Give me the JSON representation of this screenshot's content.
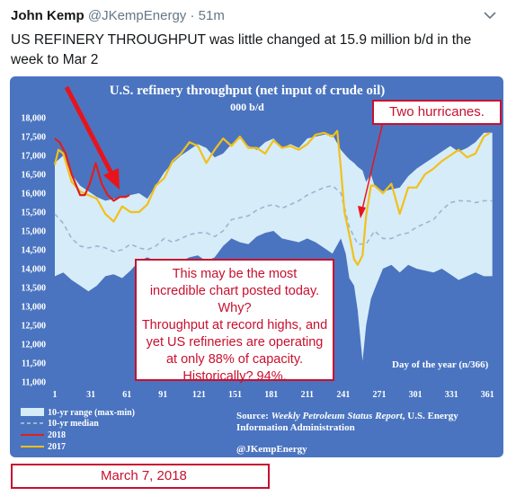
{
  "tweet": {
    "author_name": "John Kemp",
    "author_handle": "@JKempEnergy",
    "separator": "·",
    "time": "51m",
    "text": "US REFINERY THROUGHPUT was little changed at 15.9 million b/d in the week to Mar 2"
  },
  "chart": {
    "title": "U.S. refinery throughput (net input of  crude oil)",
    "subtitle": "000 b/d",
    "day_label": "Day of the year (n/366)",
    "source_line1": "Source: ",
    "source_italic": "Weekly Petroleum Status Report",
    "source_line1_rest": ", U.S. Energy",
    "source_line2": "Information Administration",
    "credit": "@JKempEnergy",
    "legend": {
      "range": "10-yr range (max-min)",
      "median": "10-yr median",
      "y2018": "2018",
      "y2017": "2017"
    }
  },
  "callouts": {
    "hurricanes": "Two hurricanes.",
    "main_lines": [
      "This may be the most",
      "incredible chart posted today.",
      "Why?",
      "Throughput at record highs, and",
      "yet US refineries are operating",
      "at only 88% of capacity.",
      "Historically? 94%."
    ],
    "date": "March 7, 2018"
  },
  "colors": {
    "background": "#4a74c0",
    "range_fill": "#d6ecf8",
    "median": "#9db5d2",
    "y2018": "#e01e1e",
    "y2017": "#f2c01a",
    "annotation_red": "#c8102e"
  },
  "chart_data": {
    "type": "area",
    "title": "U.S. refinery throughput (net input of  crude oil)",
    "subtitle": "000 b/d",
    "xlabel": "Day of the year (n/366)",
    "xlim": [
      1,
      366
    ],
    "ylim": [
      11000,
      18000
    ],
    "x_ticks": [
      1,
      31,
      61,
      91,
      121,
      151,
      181,
      211,
      241,
      271,
      301,
      331,
      361
    ],
    "y_ticks": [
      11000,
      11500,
      12000,
      12500,
      13000,
      13500,
      14000,
      14500,
      15000,
      15500,
      16000,
      16500,
      17000,
      17500,
      18000
    ],
    "series": [
      {
        "name": "10-yr range (max-min)",
        "x": [
          1,
          8,
          15,
          22,
          29,
          36,
          43,
          50,
          57,
          64,
          71,
          78,
          85,
          92,
          99,
          106,
          113,
          120,
          127,
          134,
          141,
          148,
          155,
          162,
          169,
          176,
          183,
          190,
          197,
          204,
          211,
          218,
          225,
          232,
          239,
          243,
          246,
          250,
          253,
          257,
          260,
          264,
          267,
          274,
          281,
          288,
          295,
          302,
          309,
          316,
          323,
          330,
          337,
          344,
          351,
          358,
          365
        ],
        "max": [
          16800,
          17000,
          16500,
          16200,
          16050,
          15900,
          15800,
          15850,
          15900,
          15950,
          16000,
          15850,
          16200,
          16550,
          16800,
          17000,
          17150,
          17300,
          17200,
          16950,
          17050,
          17300,
          17450,
          17250,
          17150,
          17350,
          17450,
          17200,
          17300,
          17200,
          17450,
          17500,
          17550,
          17550,
          17150,
          17000,
          16900,
          16800,
          16700,
          16600,
          16300,
          16500,
          16200,
          16050,
          16100,
          16150,
          16450,
          16650,
          16800,
          16950,
          17100,
          17250,
          17100,
          17200,
          17350,
          17600,
          17600
        ],
        "min": [
          13800,
          13900,
          13700,
          13550,
          13400,
          13550,
          13800,
          13850,
          13750,
          13950,
          14200,
          14300,
          14200,
          13900,
          14100,
          14200,
          14300,
          14350,
          14200,
          14300,
          14600,
          14800,
          14700,
          14650,
          14850,
          14950,
          15000,
          14800,
          14750,
          14700,
          14800,
          14700,
          14550,
          14400,
          14800,
          14400,
          13750,
          13550,
          12900,
          11550,
          12500,
          13200,
          13450,
          14000,
          14100,
          13900,
          14100,
          14000,
          13950,
          13900,
          14000,
          13850,
          13700,
          13800,
          13900,
          13800,
          13800
        ]
      },
      {
        "name": "10-yr median",
        "x": [
          1,
          8,
          15,
          22,
          29,
          36,
          43,
          50,
          57,
          64,
          71,
          78,
          85,
          92,
          99,
          106,
          113,
          120,
          127,
          134,
          141,
          148,
          155,
          162,
          169,
          176,
          183,
          190,
          197,
          204,
          211,
          218,
          225,
          232,
          239,
          246,
          253,
          260,
          267,
          274,
          281,
          288,
          295,
          302,
          309,
          316,
          323,
          330,
          337,
          344,
          351,
          358,
          365
        ],
        "values": [
          15450,
          15200,
          14800,
          14600,
          14550,
          14600,
          14550,
          14450,
          14500,
          14650,
          14550,
          14500,
          14600,
          14800,
          14700,
          14800,
          14900,
          14950,
          14950,
          14850,
          15000,
          15300,
          15350,
          15400,
          15550,
          15650,
          15700,
          15600,
          15700,
          15800,
          15950,
          16050,
          16150,
          16200,
          16000,
          15100,
          14650,
          14650,
          15000,
          14800,
          14800,
          14900,
          14950,
          15100,
          15200,
          15300,
          15550,
          15750,
          15800,
          15800,
          15750,
          15800,
          15800
        ]
      },
      {
        "name": "2018",
        "x": [
          1,
          5,
          10,
          15,
          22,
          26,
          30,
          35,
          40,
          45,
          50,
          55,
          60,
          63
        ],
        "values": [
          17450,
          17350,
          17050,
          16500,
          15950,
          15950,
          16250,
          16800,
          16250,
          15950,
          15800,
          15900,
          15900,
          15950
        ]
      },
      {
        "name": "2017",
        "x": [
          1,
          4,
          8,
          15,
          22,
          29,
          36,
          43,
          50,
          57,
          64,
          71,
          78,
          85,
          92,
          99,
          106,
          113,
          120,
          127,
          134,
          141,
          148,
          155,
          162,
          169,
          176,
          183,
          190,
          197,
          204,
          211,
          218,
          225,
          232,
          236,
          239,
          242,
          246,
          250,
          253,
          257,
          260,
          264,
          267,
          274,
          281,
          288,
          295,
          302,
          309,
          316,
          323,
          330,
          337,
          344,
          351,
          358,
          363
        ],
        "values": [
          16750,
          17150,
          17050,
          16300,
          16050,
          15950,
          15850,
          15450,
          15250,
          15650,
          15500,
          15500,
          15700,
          16200,
          16400,
          16850,
          17050,
          17350,
          17250,
          16800,
          17150,
          17450,
          17250,
          17500,
          17200,
          17200,
          17050,
          17400,
          17200,
          17250,
          17150,
          17300,
          17550,
          17600,
          17500,
          17650,
          16650,
          15500,
          14900,
          14250,
          14100,
          14350,
          15400,
          16200,
          16200,
          16000,
          16250,
          15450,
          16150,
          16150,
          16500,
          16650,
          16850,
          17000,
          17150,
          16950,
          17050,
          17500,
          17600
        ]
      }
    ],
    "legend_position": "bottom-left",
    "grid": false
  }
}
